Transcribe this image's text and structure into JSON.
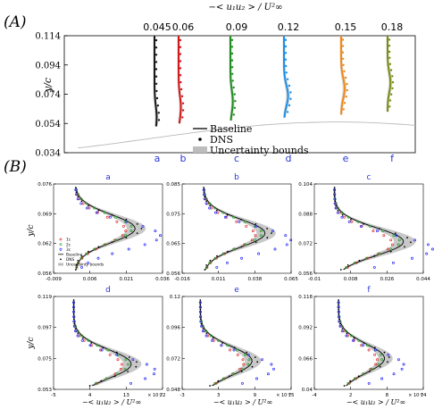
{
  "panel_labels": {
    "A": "(A)",
    "B": "(B)"
  },
  "chart_data": [
    {
      "id": "A",
      "type": "line",
      "title": "−< u₁u₂ > / U²∞",
      "ylabel": "y/c",
      "ylim": [
        0.034,
        0.114
      ],
      "yticks": [
        "0.034",
        "0.054",
        "0.074",
        "0.094",
        "0.114"
      ],
      "station_labels": [
        "a",
        "b",
        "c",
        "d",
        "e",
        "f"
      ],
      "station_values": [
        "0.045",
        "0.06",
        "0.09",
        "0.12",
        "0.15",
        "0.18"
      ],
      "legend": [
        "Baseline",
        "DNS",
        "Uncertainty bounds"
      ],
      "colors": [
        "#1a1a1a",
        "#d11919",
        "#1f8f1f",
        "#1e90e6",
        "#f08a1a",
        "#7d8c14"
      ],
      "series": [
        {
          "name": "a",
          "baseline_peak": 0.045,
          "peak_y": 0.058
        },
        {
          "name": "b",
          "baseline_peak": 0.06,
          "peak_y": 0.065
        },
        {
          "name": "c",
          "baseline_peak": 0.09,
          "peak_y": 0.069
        },
        {
          "name": "d",
          "baseline_peak": 0.12,
          "peak_y": 0.073
        },
        {
          "name": "e",
          "baseline_peak": 0.15,
          "peak_y": 0.078
        },
        {
          "name": "f",
          "baseline_peak": 0.18,
          "peak_y": 0.082
        }
      ]
    },
    {
      "id": "B",
      "type": "line",
      "xlabel": "−< u₁u₂ > / U²∞",
      "ylabel": "y/c",
      "x_scale_label": "× 10⁻³",
      "legend": [
        "1c",
        "2c",
        "3c",
        "Baseline",
        "DNS",
        "Uncertainty bounds"
      ],
      "subplots": [
        {
          "title": "a",
          "xticks": [
            "-0.009",
            "0.006",
            "0.021",
            "0.036"
          ],
          "yticks": [
            "0.056",
            "0.062",
            "0.069",
            "0.076"
          ],
          "xlim": [
            -0.009,
            0.036
          ],
          "ylim": [
            0.056,
            0.076
          ],
          "peak_x": 0.026,
          "peak_y": 0.066
        },
        {
          "title": "b",
          "xticks": [
            "-0.016",
            "0.011",
            "0.038",
            "0.065"
          ],
          "yticks": [
            "0.056",
            "0.065",
            "0.075",
            "0.085"
          ],
          "xlim": [
            -0.016,
            0.065
          ],
          "ylim": [
            0.056,
            0.085
          ],
          "peak_x": 0.048,
          "peak_y": 0.069
        },
        {
          "title": "c",
          "xticks": [
            "-0.01",
            "0.008",
            "0.026",
            "0.044"
          ],
          "yticks": [
            "0.056",
            "0.072",
            "0.088",
            "0.104"
          ],
          "xlim": [
            -0.01,
            0.044
          ],
          "ylim": [
            0.056,
            0.104
          ],
          "peak_x": 0.036,
          "peak_y": 0.073
        },
        {
          "title": "d",
          "xticks": [
            "-5",
            "4",
            "13",
            "22"
          ],
          "yticks": [
            "0.053",
            "0.075",
            "0.097",
            "0.119"
          ],
          "xlim": [
            -5,
            22
          ],
          "ylim": [
            0.053,
            0.119
          ],
          "peak_x": 15,
          "peak_y": 0.071
        },
        {
          "title": "e",
          "xticks": [
            "-3",
            "3",
            "9",
            "15"
          ],
          "yticks": [
            "0.048",
            "0.072",
            "0.096",
            "0.12"
          ],
          "xlim": [
            -3,
            15
          ],
          "ylim": [
            0.048,
            0.12
          ],
          "peak_x": 9,
          "peak_y": 0.07
        },
        {
          "title": "f",
          "xticks": [
            "-4",
            "2",
            "8",
            "14"
          ],
          "yticks": [
            "0.04",
            "0.066",
            "0.092",
            "0.118"
          ],
          "xlim": [
            -4,
            14
          ],
          "ylim": [
            0.04,
            0.118
          ],
          "peak_x": 8,
          "peak_y": 0.066
        }
      ]
    }
  ]
}
